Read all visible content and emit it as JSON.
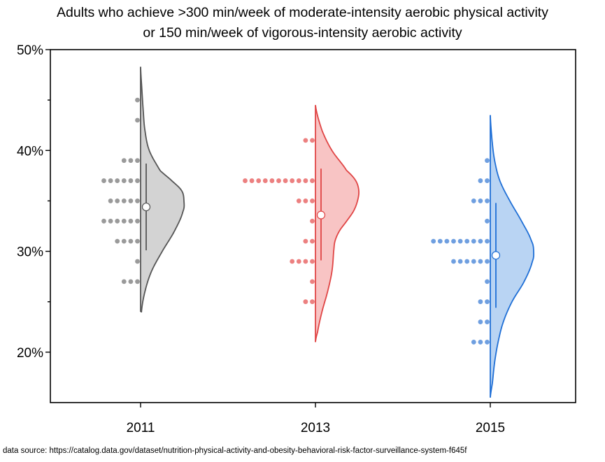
{
  "title_line1": "Adults who achieve >300 min/week of moderate-intensity aerobic physical activity",
  "title_line2": "or 150 min/week of vigorous-intensity aerobic activity",
  "source": "data source: https://catalog.data.gov/dataset/nutrition-physical-activity-and-obesity-behavioral-risk-factor-surveillance-system-f645f",
  "chart_data": {
    "type": "violin",
    "title": "Adults who achieve >300 min/week of moderate-intensity aerobic physical activity or 150 min/week of vigorous-intensity aerobic activity",
    "xlabel": "",
    "ylabel": "",
    "ylim": [
      15,
      50
    ],
    "yticks": [
      "20%",
      "30%",
      "40%",
      "50%"
    ],
    "categories": [
      "2011",
      "2013",
      "2015"
    ],
    "grid": false,
    "series": [
      {
        "category": "2011",
        "color": "#555555",
        "fill": "#d3d3d3",
        "dot_color": "#9a9a9a",
        "points": [
          {
            "y": 45,
            "count": 1
          },
          {
            "y": 43,
            "count": 1
          },
          {
            "y": 39,
            "count": 3
          },
          {
            "y": 37,
            "count": 6
          },
          {
            "y": 35,
            "count": 5
          },
          {
            "y": 33,
            "count": 6
          },
          {
            "y": 31,
            "count": 4
          },
          {
            "y": 29,
            "count": 1
          },
          {
            "y": 27,
            "count": 3
          }
        ],
        "mean": 34.4,
        "sd_range": [
          30.1,
          38.7
        ],
        "density_range": [
          24,
          48.3
        ],
        "density": [
          [
            24,
            0.02
          ],
          [
            26,
            0.1
          ],
          [
            28,
            0.25
          ],
          [
            30,
            0.5
          ],
          [
            32,
            0.78
          ],
          [
            34,
            0.98
          ],
          [
            35,
            1.0
          ],
          [
            36,
            0.95
          ],
          [
            37,
            0.72
          ],
          [
            38,
            0.45
          ],
          [
            40,
            0.2
          ],
          [
            42,
            0.1
          ],
          [
            44,
            0.06
          ],
          [
            46,
            0.03
          ],
          [
            48.3,
            0.0
          ]
        ]
      },
      {
        "category": "2013",
        "color": "#e04545",
        "fill": "#f8c4c4",
        "dot_color": "#ec8080",
        "points": [
          {
            "y": 41,
            "count": 2
          },
          {
            "y": 37,
            "count": 11
          },
          {
            "y": 35,
            "count": 3
          },
          {
            "y": 33,
            "count": 1
          },
          {
            "y": 31,
            "count": 2
          },
          {
            "y": 29,
            "count": 4
          },
          {
            "y": 27,
            "count": 1
          },
          {
            "y": 25,
            "count": 2
          }
        ],
        "mean": 33.6,
        "sd_range": [
          29.1,
          38.2
        ],
        "density_range": [
          21,
          44.5
        ],
        "density": [
          [
            21,
            0.0
          ],
          [
            22,
            0.05
          ],
          [
            24,
            0.15
          ],
          [
            26,
            0.28
          ],
          [
            28,
            0.38
          ],
          [
            30,
            0.42
          ],
          [
            31,
            0.45
          ],
          [
            32,
            0.55
          ],
          [
            33,
            0.72
          ],
          [
            34,
            0.88
          ],
          [
            35,
            0.97
          ],
          [
            36,
            1.0
          ],
          [
            37,
            0.93
          ],
          [
            38,
            0.72
          ],
          [
            40,
            0.38
          ],
          [
            42,
            0.15
          ],
          [
            44.5,
            0.0
          ]
        ]
      },
      {
        "category": "2015",
        "color": "#1f6fd6",
        "fill": "#b9d4f3",
        "dot_color": "#6f9fe0",
        "points": [
          {
            "y": 39,
            "count": 1
          },
          {
            "y": 37,
            "count": 2
          },
          {
            "y": 35,
            "count": 3
          },
          {
            "y": 33,
            "count": 1
          },
          {
            "y": 31,
            "count": 9
          },
          {
            "y": 29,
            "count": 6
          },
          {
            "y": 27,
            "count": 1
          },
          {
            "y": 25,
            "count": 2
          },
          {
            "y": 23,
            "count": 2
          },
          {
            "y": 21,
            "count": 3
          }
        ],
        "mean": 29.6,
        "sd_range": [
          24.4,
          34.8
        ],
        "density_range": [
          15.5,
          43.5
        ],
        "density": [
          [
            15.5,
            0.0
          ],
          [
            17,
            0.05
          ],
          [
            19,
            0.1
          ],
          [
            21,
            0.18
          ],
          [
            23,
            0.3
          ],
          [
            25,
            0.5
          ],
          [
            27,
            0.78
          ],
          [
            29,
            0.97
          ],
          [
            30,
            1.0
          ],
          [
            31,
            0.95
          ],
          [
            33,
            0.72
          ],
          [
            35,
            0.45
          ],
          [
            37,
            0.22
          ],
          [
            39,
            0.1
          ],
          [
            41,
            0.04
          ],
          [
            43.5,
            0.0
          ]
        ]
      }
    ]
  }
}
